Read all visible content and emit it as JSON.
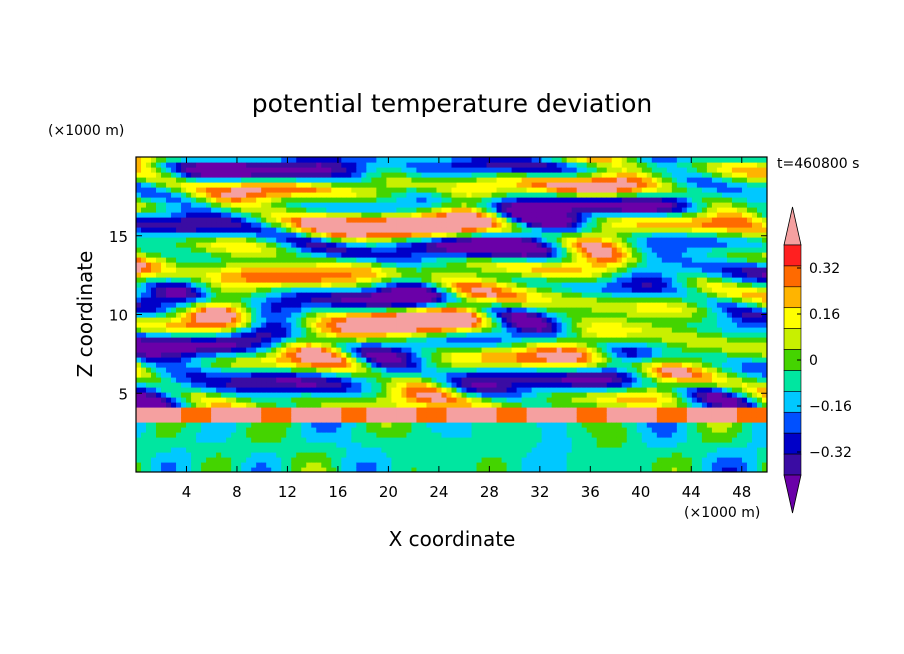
{
  "chart_data": {
    "type": "heatmap",
    "title": "potential temperature deviation",
    "xlabel": "X coordinate",
    "ylabel": "Z coordinate",
    "x_unit": "(×1000 m)",
    "y_unit": "(×1000 m)",
    "time_label": "t=460800 s",
    "xlim": [
      0,
      50
    ],
    "ylim": [
      0,
      20
    ],
    "x_ticks": [
      4,
      8,
      12,
      16,
      20,
      24,
      28,
      32,
      36,
      40,
      44,
      48
    ],
    "y_ticks": [
      5,
      10,
      15
    ],
    "colorbar": {
      "levels": [
        -0.4,
        -0.32,
        -0.24,
        -0.16,
        -0.08,
        0,
        0.08,
        0.16,
        0.24,
        0.32,
        0.4
      ],
      "tick_labels": [
        "0.32",
        "0.16",
        "0",
        "−0.16",
        "−0.32"
      ],
      "tick_values": [
        0.32,
        0.16,
        0,
        -0.16,
        -0.32
      ],
      "colors": [
        "#6a00a8",
        "#3a0ca3",
        "#0000c8",
        "#0050ff",
        "#00c8ff",
        "#00e6a0",
        "#44d400",
        "#c8f000",
        "#ffff00",
        "#ffb400",
        "#ff6a00",
        "#ff2020",
        "#f5a0a0"
      ],
      "extend": "both"
    },
    "field_features": {
      "boundary_layer_top": 4,
      "lower_band": [
        3.2,
        4.2
      ],
      "description_regions": [
        "upper wavy layers 4–20",
        "convective boundary layer 0–4"
      ]
    }
  }
}
